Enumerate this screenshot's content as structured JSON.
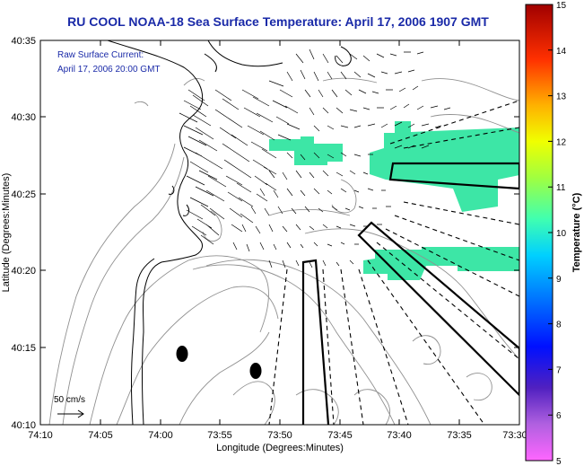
{
  "title": "RU COOL  NOAA-18  Sea Surface Temperature:  April 17, 2006 1907 GMT",
  "annotation": {
    "line1": "Raw Surface Current:",
    "line2": "April 17, 2006 20:00 GMT"
  },
  "axes": {
    "xlabel": "Longitude (Degrees:Minutes)",
    "ylabel": "Latitude (Degrees:Minutes)",
    "xticks": [
      "74:10",
      "74:05",
      "74:00",
      "73:55",
      "73:50",
      "73:45",
      "73:40",
      "73:35",
      "73:30"
    ],
    "yticks": [
      "40:35",
      "40:30",
      "40:25",
      "40:20",
      "40:15",
      "40:10"
    ]
  },
  "scale_label": "50 cm/s",
  "colorbar": {
    "label": "Temperature (°C)",
    "ticks": [
      "15",
      "14",
      "13",
      "12",
      "11",
      "10",
      "9",
      "8",
      "7",
      "6",
      "5"
    ],
    "range": [
      5,
      15
    ]
  },
  "colors": {
    "title": "#1a2aa8",
    "sst_patch": "#3de6a6"
  }
}
